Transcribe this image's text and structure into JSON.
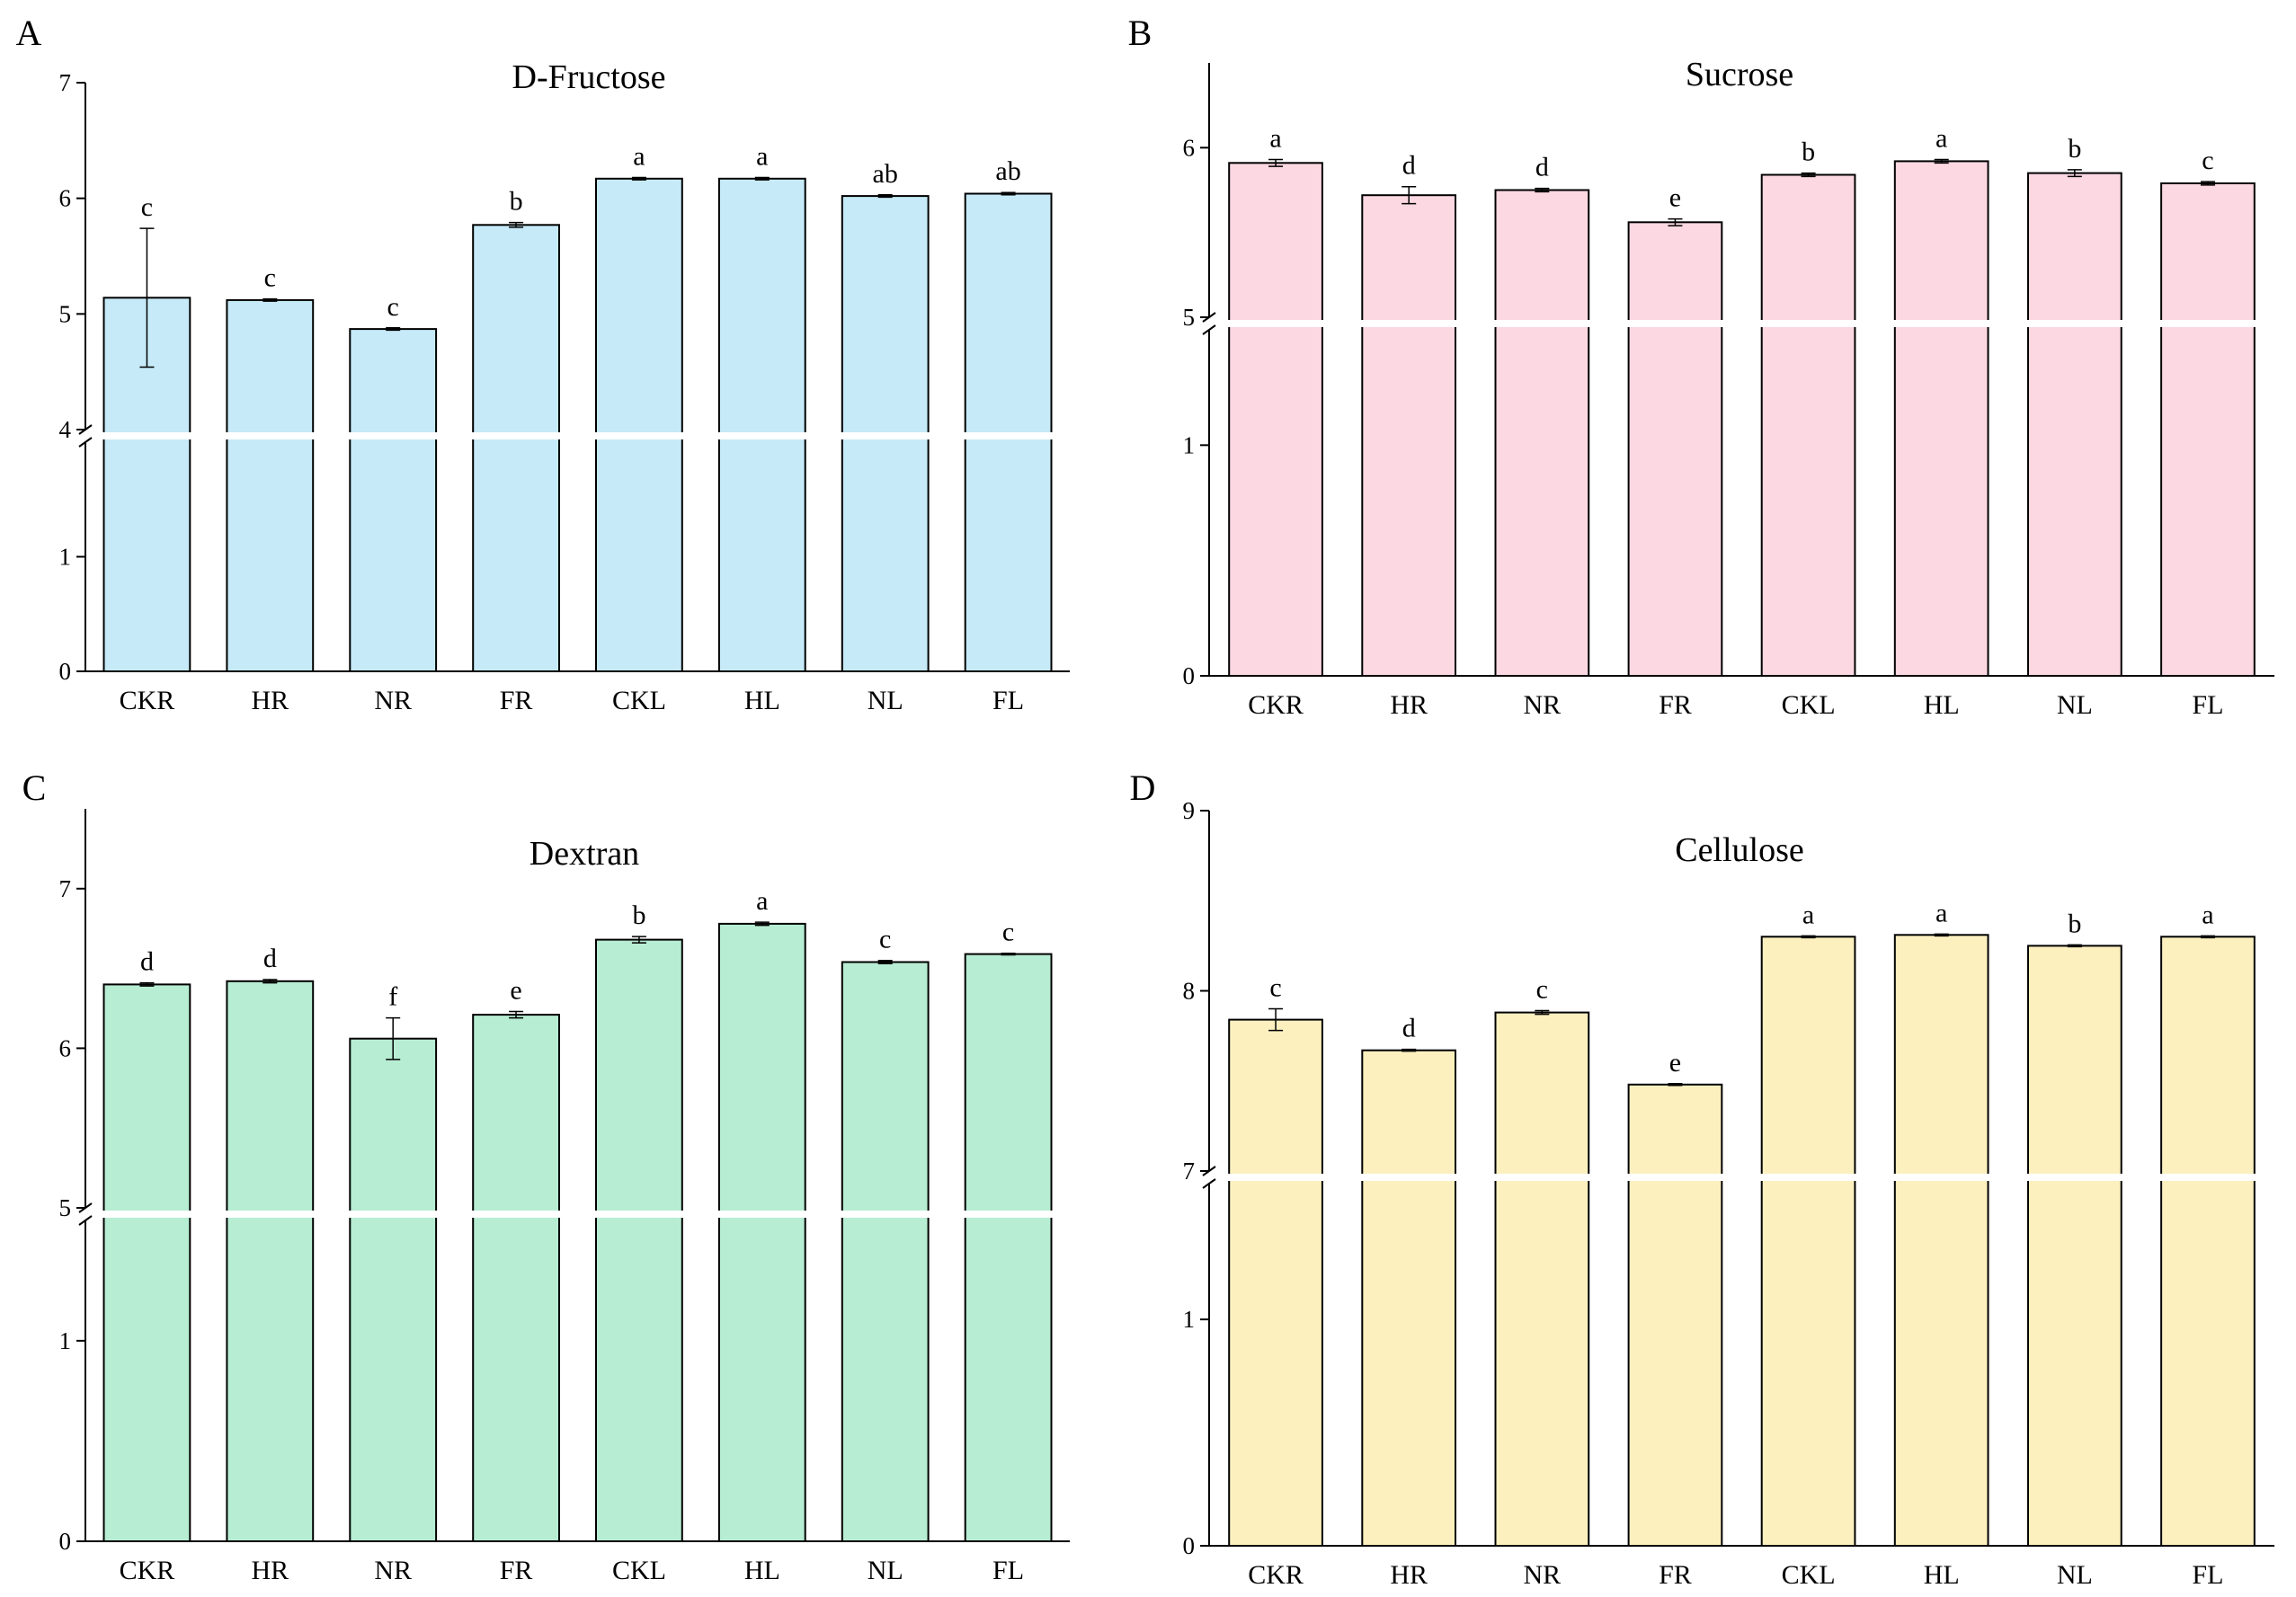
{
  "chart_data": [
    {
      "panel": "A",
      "type": "bar",
      "title": "D-Fructose",
      "xlabel": "",
      "ylabel": "",
      "color": "#c6eaf7",
      "categories": [
        "CKR",
        "HR",
        "NR",
        "FR",
        "CKL",
        "HL",
        "NL",
        "FL"
      ],
      "values": [
        5.14,
        5.12,
        4.87,
        5.77,
        6.17,
        6.17,
        6.02,
        6.04
      ],
      "errors": [
        0.6,
        0.01,
        0.01,
        0.02,
        0.01,
        0.01,
        0.01,
        0.01
      ],
      "significance": [
        "c",
        "c",
        "c",
        "b",
        "a",
        "a",
        "ab",
        "ab"
      ],
      "ylim_lower": [
        0,
        2
      ],
      "ylim_upper": [
        4,
        7
      ],
      "yticks_lower": [
        0,
        1
      ],
      "yticks_upper": [
        4,
        5,
        6,
        7
      ],
      "axis_break": true
    },
    {
      "panel": "B",
      "type": "bar",
      "title": "Sucrose",
      "xlabel": "",
      "ylabel": "",
      "color": "#fbd8e2",
      "categories": [
        "CKR",
        "HR",
        "NR",
        "FR",
        "CKL",
        "HL",
        "NL",
        "FL"
      ],
      "values": [
        5.91,
        5.72,
        5.75,
        5.56,
        5.84,
        5.92,
        5.85,
        5.79
      ],
      "errors": [
        0.02,
        0.05,
        0.01,
        0.02,
        0.01,
        0.01,
        0.02,
        0.01
      ],
      "significance": [
        "a",
        "d",
        "d",
        "e",
        "b",
        "a",
        "b",
        "c"
      ],
      "ylim_lower": [
        0,
        1.5
      ],
      "ylim_upper": [
        5,
        6.5
      ],
      "yticks_lower": [
        0,
        1
      ],
      "yticks_upper": [
        5,
        6
      ],
      "axis_break": true
    },
    {
      "panel": "C",
      "type": "bar",
      "title": "Dextran",
      "xlabel": "",
      "ylabel": "",
      "color": "#b7edd3",
      "categories": [
        "CKR",
        "HR",
        "NR",
        "FR",
        "CKL",
        "HL",
        "NL",
        "FL"
      ],
      "values": [
        6.4,
        6.42,
        6.06,
        6.21,
        6.68,
        6.78,
        6.54,
        6.59
      ],
      "errors": [
        0.01,
        0.01,
        0.13,
        0.02,
        0.02,
        0.01,
        0.01,
        0.005
      ],
      "significance": [
        "d",
        "d",
        "f",
        "e",
        "b",
        "a",
        "c",
        "c"
      ],
      "ylim_lower": [
        0,
        1.6
      ],
      "ylim_upper": [
        5,
        7.5
      ],
      "yticks_lower": [
        0,
        1
      ],
      "yticks_upper": [
        5,
        6,
        7
      ],
      "axis_break": true
    },
    {
      "panel": "D",
      "type": "bar",
      "title": "Cellulose",
      "xlabel": "",
      "ylabel": "",
      "color": "#fcf0bf",
      "categories": [
        "CKR",
        "HR",
        "NR",
        "FR",
        "CKL",
        "HL",
        "NL",
        "FL"
      ],
      "values": [
        7.84,
        7.67,
        7.88,
        7.48,
        8.3,
        8.31,
        8.25,
        8.3
      ],
      "errors": [
        0.06,
        0.005,
        0.01,
        0.005,
        0.005,
        0.005,
        0.005,
        0.005
      ],
      "significance": [
        "c",
        "d",
        "c",
        "e",
        "a",
        "a",
        "b",
        "a"
      ],
      "ylim_lower": [
        0,
        1.6
      ],
      "ylim_upper": [
        7,
        9
      ],
      "yticks_lower": [
        0,
        1
      ],
      "yticks_upper": [
        7,
        8,
        9
      ],
      "axis_break": true
    }
  ]
}
